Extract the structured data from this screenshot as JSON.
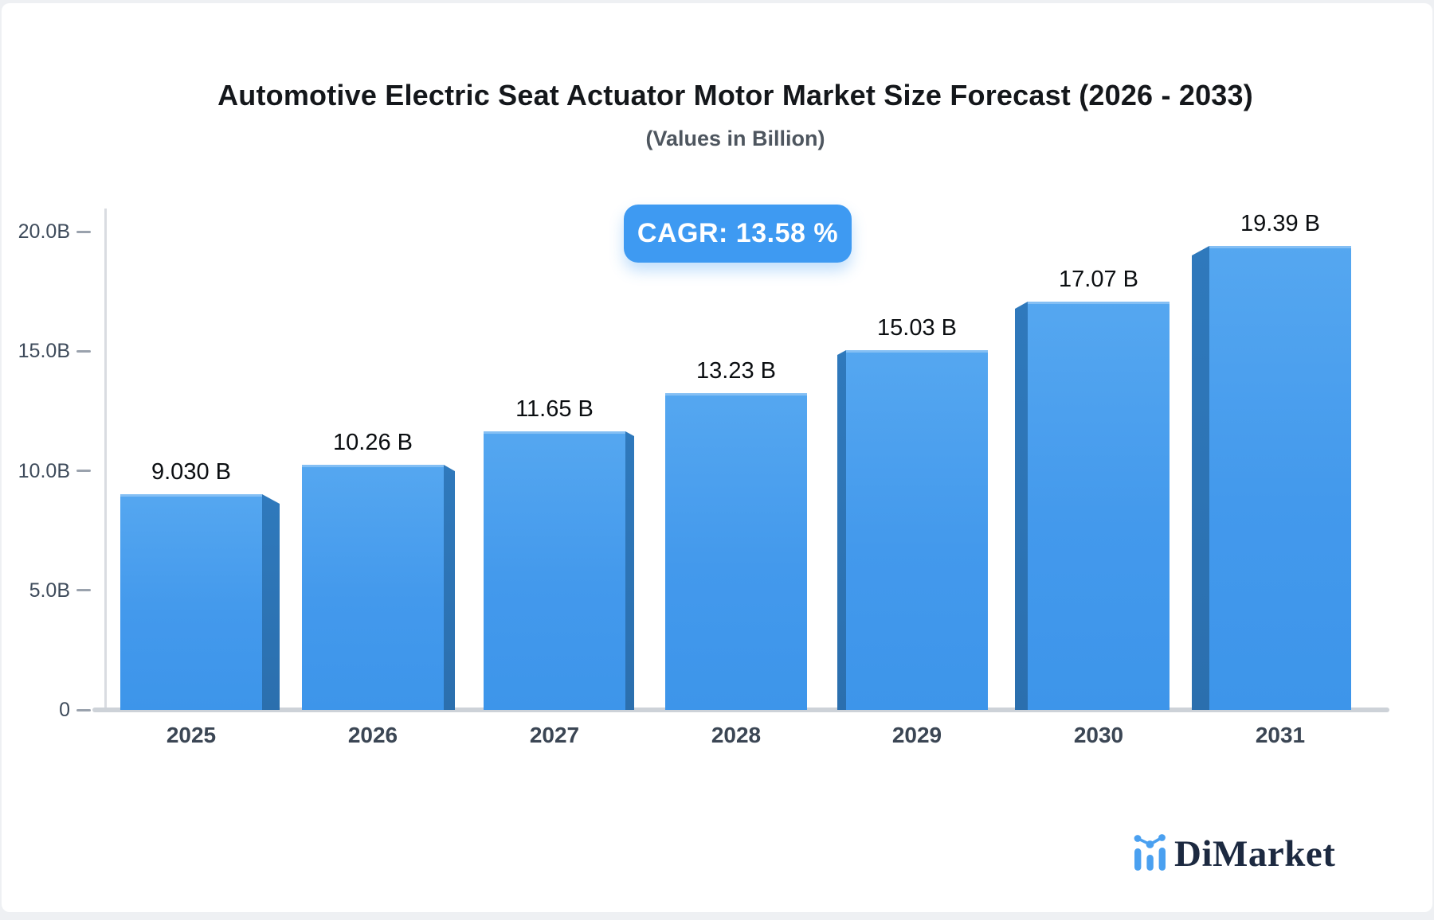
{
  "page": {
    "background_color": "#eef0f3",
    "card_color": "#ffffff"
  },
  "header": {
    "title": "Automotive Electric Seat Actuator Motor Market Size Forecast (2026 - 2033)",
    "subtitle": "(Values in Billion)"
  },
  "cagr_badge": {
    "text": "CAGR: 13.58 %",
    "background": "#3e9af2",
    "text_color": "#ffffff"
  },
  "chart_data": {
    "type": "bar",
    "title": "Automotive Electric Seat Actuator Motor Market Size Forecast (2026 - 2033)",
    "subtitle": "(Values in Billion)",
    "categories": [
      "2025",
      "2026",
      "2027",
      "2028",
      "2029",
      "2030",
      "2031"
    ],
    "values": [
      9.03,
      10.26,
      11.65,
      13.23,
      15.03,
      17.07,
      19.39
    ],
    "value_labels": [
      "9.030 B",
      "10.26 B",
      "11.65 B",
      "13.23 B",
      "15.03 B",
      "17.07 B",
      "19.39 B"
    ],
    "y_tick_values": [
      0,
      5,
      10,
      15,
      20
    ],
    "y_tick_labels": [
      "0",
      "5.0B",
      "10.0B",
      "15.0B",
      "20.0B"
    ],
    "ylim": [
      0,
      20
    ],
    "xlabel": "",
    "ylabel": "",
    "grid": false,
    "legend": false,
    "annotation": "CAGR: 13.58 %",
    "bar_face_color": "#4399ec",
    "bar_side_color": "#2d74b4",
    "style": "3d-beveled bars, sides face outward from center bar"
  },
  "logo": {
    "text": "DiMarket",
    "icon": "dimarket-bars-icon",
    "icon_color": "#4aa0f0",
    "text_color": "#1c2940"
  }
}
